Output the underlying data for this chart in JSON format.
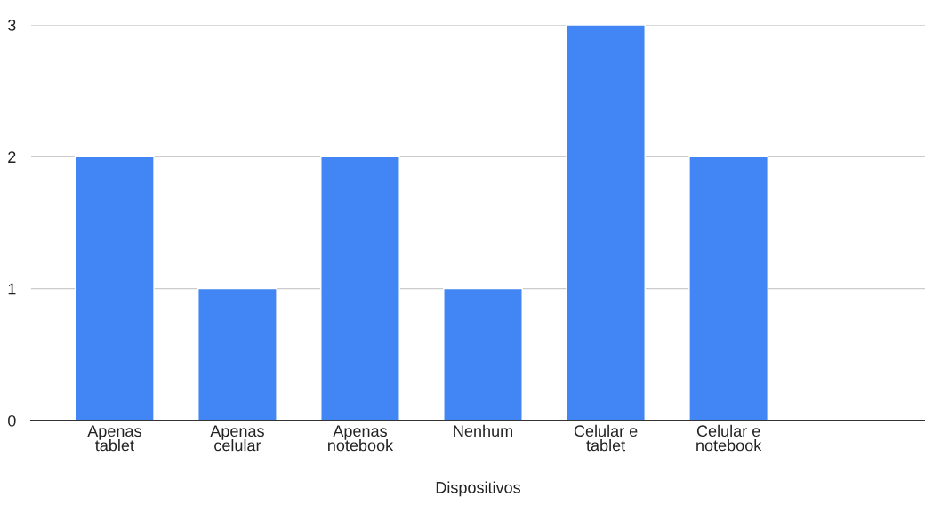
{
  "chart_data": {
    "type": "bar",
    "xlabel": "Dispositivos",
    "categories": [
      "Apenas\ntablet",
      "Apenas\ncelular",
      "Apenas\nnotebook",
      "Nenhum",
      "Celular e\ntablet",
      "Celular e\nnotebook",
      null
    ],
    "values": [
      2,
      1,
      2,
      1,
      3,
      2,
      null
    ],
    "color": "#4285f4",
    "ylim": [
      0,
      3
    ],
    "yticks": [
      0,
      1,
      2,
      3
    ],
    "grid": "y"
  }
}
